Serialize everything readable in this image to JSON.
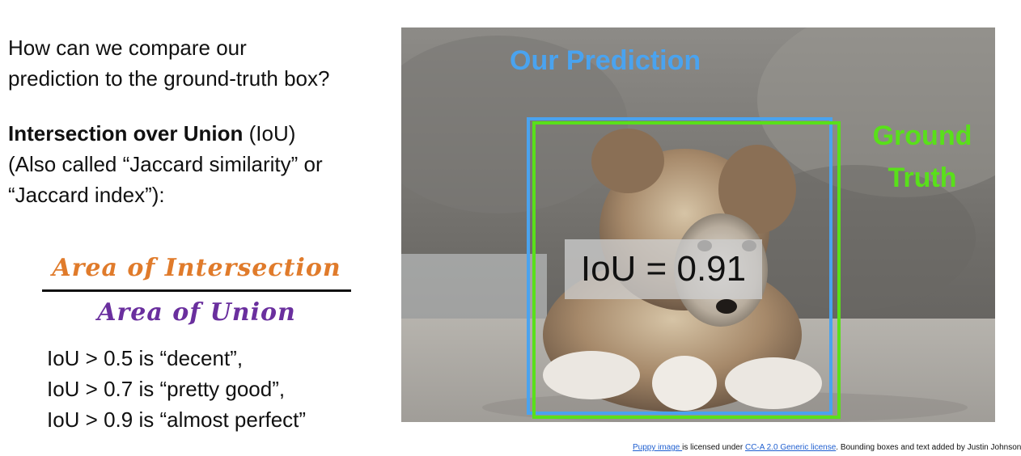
{
  "left_text": {
    "question_line1": "How can we compare our",
    "question_line2": "prediction to the ground-truth box?",
    "iou_title_bold": "Intersection over Union",
    "iou_title_rest": " (IoU)",
    "alias_line1": "(Also called “Jaccard similarity” or",
    "alias_line2": "“Jaccard index”):"
  },
  "formula": {
    "numerator": "Area of Intersection",
    "denominator": "Area of Union"
  },
  "thresholds": [
    "IoU > 0.5 is “decent”,",
    "IoU > 0.7 is “pretty good”,",
    "IoU > 0.9 is “almost perfect”"
  ],
  "image_overlay": {
    "prediction_label": "Our Prediction",
    "ground_truth_line1": "Ground",
    "ground_truth_line2": "Truth",
    "iou_value_label": "IoU = 0.91"
  },
  "credit": {
    "link1": "Puppy image ",
    "text1": "is licensed under ",
    "link2": "CC-A 2.0 Generic license",
    "text2": ". Bounding boxes and text added by Justin Johnson."
  },
  "colors": {
    "prediction_box": "#4aa3ef",
    "ground_truth_box": "#59e01a",
    "numerator": "#e07b2b",
    "denominator": "#6a2f9e"
  }
}
